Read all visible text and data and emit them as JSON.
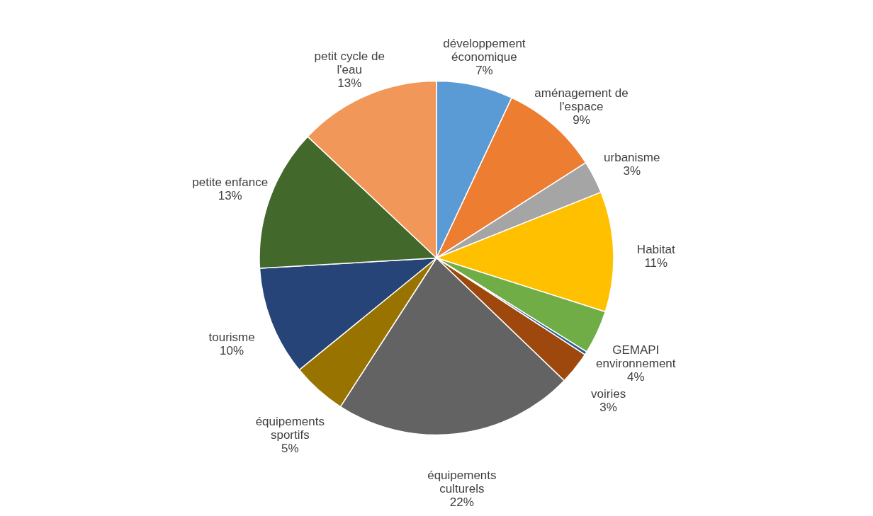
{
  "chart_data": {
    "type": "pie",
    "categories": [
      "développement économique",
      "aménagement de l'espace",
      "urbanisme",
      "Habitat",
      "GEMAPI environnement",
      null,
      "voiries",
      "équipements culturels",
      "équipements sportifs",
      "tourisme",
      "petite enfance",
      "petit cycle de l'eau"
    ],
    "values": [
      7,
      9,
      3,
      11,
      4,
      0.3,
      3,
      22,
      5,
      10,
      13,
      13
    ],
    "value_labels": [
      "7%",
      "9%",
      "3%",
      "11%",
      "4%",
      null,
      "3%",
      "22%",
      "5%",
      "10%",
      "13%",
      "13%"
    ],
    "colors": [
      "#5b9bd5",
      "#ed7d31",
      "#a5a5a5",
      "#ffc000",
      "#70ad47",
      "#255e91",
      "#9e480e",
      "#636363",
      "#997300",
      "#264478",
      "#43682b",
      "#f1975a"
    ]
  }
}
